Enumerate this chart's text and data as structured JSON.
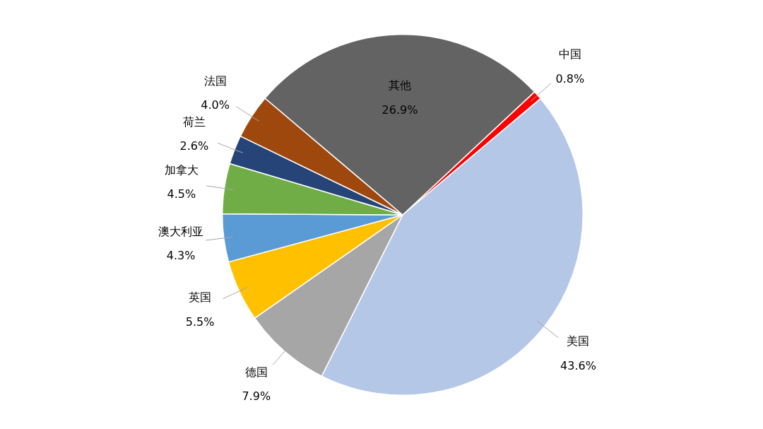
{
  "chart_data": {
    "type": "pie",
    "categories": [
      "中国",
      "美国",
      "德国",
      "英国",
      "澳大利亚",
      "加拿大",
      "荷兰",
      "法国",
      "其他"
    ],
    "values": [
      0.8,
      43.6,
      7.9,
      5.5,
      4.3,
      4.5,
      2.6,
      4.0,
      26.9
    ],
    "value_labels": [
      "0.8%",
      "43.6%",
      "7.9%",
      "5.5%",
      "4.3%",
      "4.5%",
      "2.6%",
      "4.0%",
      "26.9%"
    ],
    "colors": [
      "#ff0000",
      "#b4c7e7",
      "#a6a6a6",
      "#ffc000",
      "#5b9bd5",
      "#70ad47",
      "#264478",
      "#9e480e",
      "#636363"
    ]
  }
}
